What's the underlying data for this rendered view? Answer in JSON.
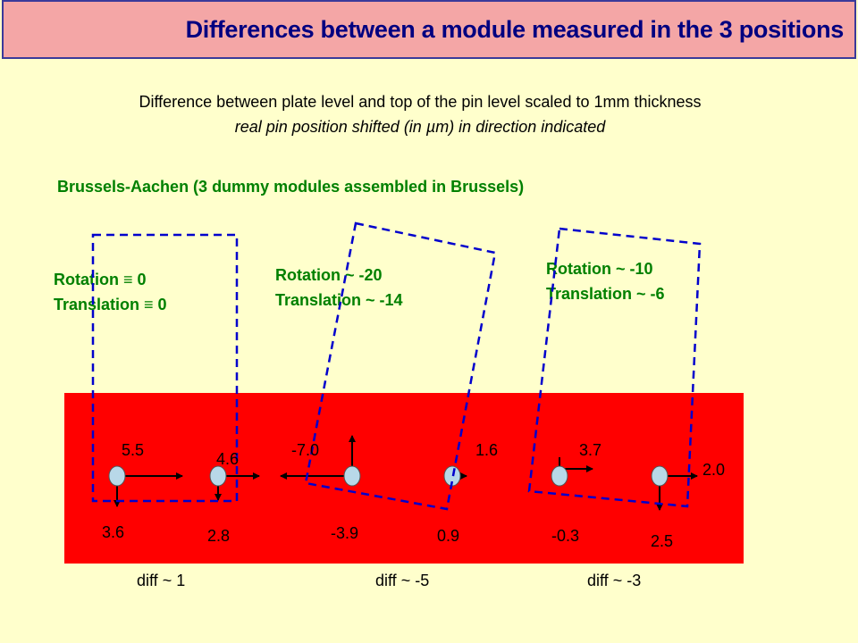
{
  "title": "Differences between a module measured in the 3 positions",
  "subtitle_line1": "Difference between plate level and top of the pin level scaled to 1mm thickness",
  "subtitle_line2": "real pin position shifted (in µm) in direction indicated",
  "section_title": "Brussels-Aachen (3 dummy modules assembled in Brussels)",
  "positions": [
    {
      "rotation": "Rotation ≡ 0",
      "translation": "Translation ≡ 0",
      "diff": "diff ~ 1",
      "values": [
        "5.5",
        "3.6",
        "4.6",
        "2.8"
      ]
    },
    {
      "rotation": "Rotation ~ -20",
      "translation": "Translation ~ -14",
      "diff": "diff ~ -5",
      "values": [
        "-7.0",
        "-3.9",
        "1.6",
        "0.9"
      ]
    },
    {
      "rotation": "Rotation ~ -10",
      "translation": "Translation ~ -6",
      "diff": "diff ~ -3",
      "values": [
        "3.7",
        "-0.3",
        "2.0",
        "2.5"
      ]
    }
  ],
  "colors": {
    "background": "#ffffcc",
    "plate": "#ff0000",
    "title_text": "#000080",
    "annotation": "#008000",
    "module_outline": "#0000cc",
    "pin": "#b8d8e8"
  }
}
